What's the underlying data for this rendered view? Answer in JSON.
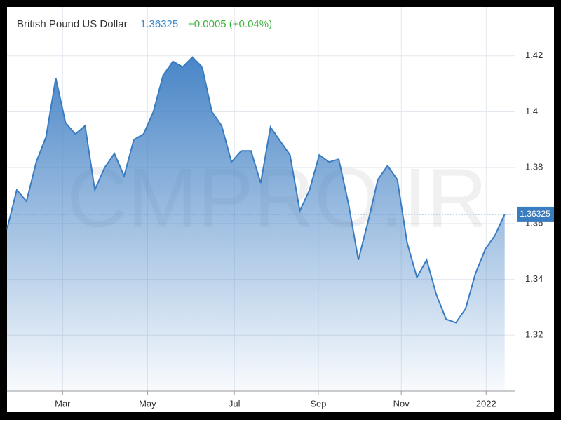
{
  "chart_data": {
    "type": "area",
    "title": "British Pound US Dollar",
    "price": 1.36325,
    "change": "+0.0005 (+0.04%)",
    "watermark": "CMPRO.IR",
    "categories": [
      null,
      null,
      null,
      null,
      null,
      null,
      null,
      null,
      null,
      null,
      null,
      null,
      null,
      null,
      null,
      null,
      null,
      null,
      null,
      null,
      null,
      null,
      null,
      null,
      null,
      null,
      null,
      null,
      null,
      null,
      null,
      null,
      null,
      null,
      null,
      null,
      null,
      null,
      null,
      null,
      null,
      null,
      null,
      null,
      null,
      null,
      null,
      null,
      null,
      null,
      null,
      null
    ],
    "values": [
      1.358,
      1.372,
      1.368,
      1.382,
      1.391,
      1.412,
      1.396,
      1.392,
      1.395,
      1.372,
      1.38,
      1.385,
      1.377,
      1.39,
      1.392,
      1.4,
      1.413,
      1.418,
      1.416,
      1.4195,
      1.416,
      1.4,
      1.395,
      1.382,
      1.386,
      1.386,
      1.3745,
      1.3945,
      1.3895,
      1.3845,
      1.3645,
      1.372,
      1.3845,
      1.382,
      1.383,
      1.367,
      1.347,
      1.3607,
      1.3757,
      1.3807,
      1.3757,
      1.3532,
      1.3407,
      1.347,
      1.3345,
      1.3257,
      1.3245,
      1.3295,
      1.342,
      1.3507,
      1.3557,
      1.36325
    ],
    "color": "#3a7cc0",
    "xlim": [
      0,
      52.1
    ],
    "xticks": [
      {
        "value": 5.7,
        "label": "Mar"
      },
      {
        "value": 14.4,
        "label": "May"
      },
      {
        "value": 23.3,
        "label": "Jul"
      },
      {
        "value": 31.9,
        "label": "Sep"
      },
      {
        "value": 40.4,
        "label": "Nov"
      },
      {
        "value": 49.1,
        "label": "2022"
      }
    ],
    "ylim": [
      1.3,
      1.4375
    ],
    "yticks": [
      1.32,
      1.34,
      1.36,
      1.38,
      1.4,
      1.42
    ],
    "grid": true
  }
}
